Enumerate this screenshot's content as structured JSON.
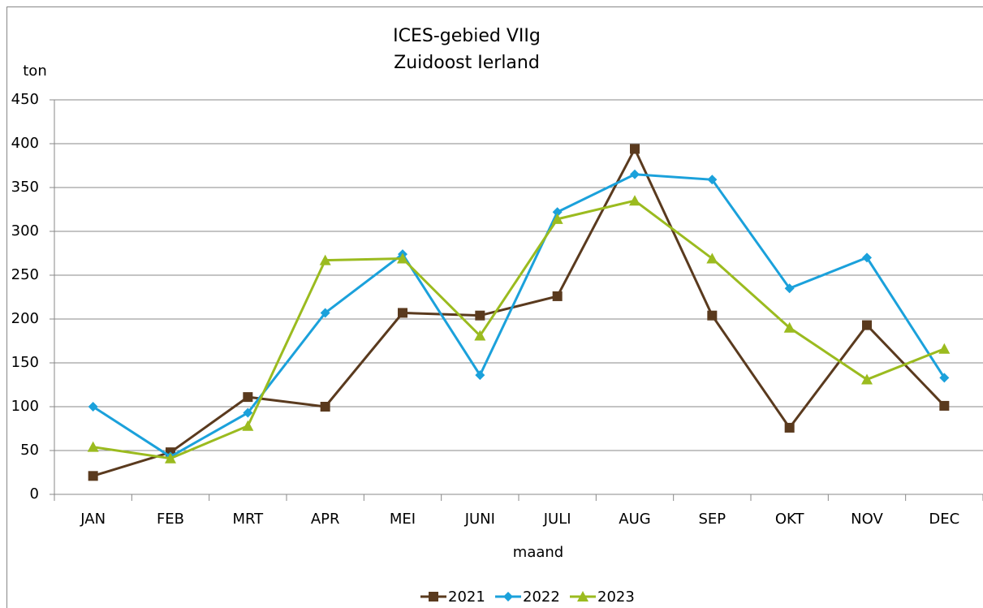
{
  "chart_data": {
    "type": "line",
    "title": "ICES-gebied VIIg",
    "subtitle": "Zuidoost Ierland",
    "y_label": "ton",
    "x_label": "maand",
    "categories": [
      "JAN",
      "FEB",
      "MRT",
      "APR",
      "MEI",
      "JUNI",
      "JULI",
      "AUG",
      "SEP",
      "OKT",
      "NOV",
      "DEC"
    ],
    "series": [
      {
        "name": "2021",
        "color": "#5a3a1e",
        "marker": "square",
        "values": [
          21,
          48,
          111,
          100,
          207,
          204,
          226,
          394,
          204,
          76,
          193,
          101
        ]
      },
      {
        "name": "2022",
        "color": "#1ba1db",
        "marker": "diamond",
        "values": [
          100,
          43,
          93,
          207,
          274,
          136,
          322,
          365,
          359,
          235,
          270,
          133
        ]
      },
      {
        "name": "2023",
        "color": "#9bbb1f",
        "marker": "triangle",
        "values": [
          54,
          41,
          78,
          267,
          269,
          181,
          314,
          335,
          269,
          190,
          131,
          166
        ]
      }
    ],
    "ylim": [
      0,
      450
    ],
    "yticks": [
      0,
      50,
      100,
      150,
      200,
      250,
      300,
      350,
      400,
      450
    ],
    "grid": true,
    "legend": "bottom"
  }
}
